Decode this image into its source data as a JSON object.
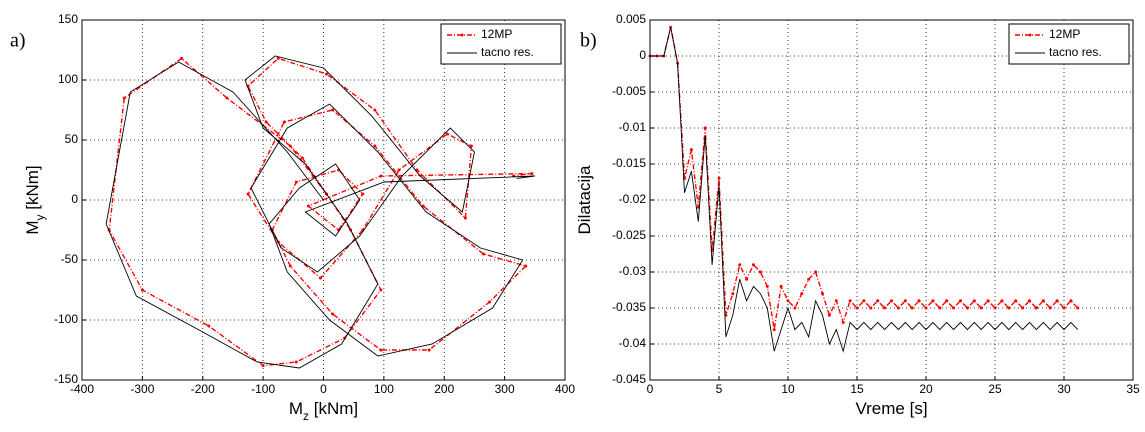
{
  "chart_data": [
    {
      "type": "line",
      "label": "a)",
      "xlabel": [
        "M",
        "z",
        " [kNm]"
      ],
      "ylabel": [
        "M",
        "y",
        " [kNm]"
      ],
      "xlim": [
        -400,
        400
      ],
      "xticks": [
        -400,
        -300,
        -200,
        -100,
        0,
        100,
        200,
        300,
        400
      ],
      "ylim": [
        -150,
        150
      ],
      "yticks": [
        -150,
        -100,
        -50,
        0,
        50,
        100,
        150
      ],
      "grid": true,
      "legend": "upper right",
      "series": [
        {
          "name": "12MP",
          "color": "#ff0000",
          "style": "dashed",
          "markers": true,
          "x": [
            5,
            -55,
            -160,
            -235,
            -330,
            -355,
            -300,
            -190,
            -100,
            -45,
            35,
            95,
            45,
            -35,
            -95,
            -125,
            -75,
            5,
            85,
            155,
            235,
            245,
            205,
            125,
            65,
            -5,
            -75,
            -125,
            -65,
            15,
            85,
            165,
            265,
            335,
            275,
            175,
            95,
            15,
            -55,
            -85,
            -45,
            25,
            65,
            25,
            -25,
            95,
            345,
            315
          ],
          "values": [
            5,
            45,
            85,
            118,
            85,
            -25,
            -75,
            -105,
            -138,
            -135,
            -115,
            -75,
            -25,
            35,
            65,
            95,
            118,
            105,
            75,
            25,
            -15,
            45,
            55,
            25,
            -25,
            -65,
            -35,
            5,
            65,
            75,
            45,
            -5,
            -45,
            -55,
            -85,
            -125,
            -125,
            -95,
            -55,
            -25,
            15,
            25,
            5,
            -25,
            -5,
            20,
            22,
            20
          ]
        },
        {
          "name": "tacno res.",
          "color": "#000000",
          "style": "solid",
          "markers": false,
          "x": [
            0,
            -60,
            -150,
            -240,
            -320,
            -360,
            -310,
            -200,
            -110,
            -40,
            30,
            90,
            40,
            -30,
            -100,
            -130,
            -80,
            0,
            80,
            160,
            230,
            250,
            210,
            130,
            60,
            -10,
            -70,
            -120,
            -60,
            10,
            90,
            170,
            260,
            330,
            280,
            180,
            90,
            10,
            -60,
            -90,
            -40,
            20,
            60,
            20,
            -30,
            100,
            350,
            320
          ],
          "values": [
            0,
            40,
            90,
            115,
            90,
            -20,
            -80,
            -110,
            -135,
            -140,
            -120,
            -70,
            -20,
            30,
            60,
            100,
            120,
            110,
            70,
            20,
            -10,
            40,
            60,
            20,
            -30,
            -60,
            -40,
            10,
            60,
            80,
            40,
            -10,
            -40,
            -50,
            -90,
            -120,
            -130,
            -100,
            -60,
            -20,
            10,
            30,
            0,
            -30,
            -10,
            15,
            20,
            18
          ]
        }
      ]
    },
    {
      "type": "line",
      "label": "b)",
      "xlabel": [
        "Vreme [s]"
      ],
      "ylabel": [
        "Dilatacija"
      ],
      "xlim": [
        0,
        35
      ],
      "xticks": [
        0,
        5,
        10,
        15,
        20,
        25,
        30,
        35
      ],
      "ylim": [
        -0.045,
        0.005
      ],
      "yticks": [
        -0.045,
        -0.04,
        -0.035,
        -0.03,
        -0.025,
        -0.02,
        -0.015,
        -0.01,
        -0.005,
        0,
        0.005
      ],
      "grid": true,
      "legend": "upper right",
      "series": [
        {
          "name": "12MP",
          "color": "#ff0000",
          "style": "dashed",
          "markers": true,
          "x": [
            0,
            0.5,
            1,
            1.5,
            2,
            2.5,
            3,
            3.5,
            4,
            4.5,
            5,
            5.5,
            6,
            6.5,
            7,
            7.5,
            8,
            8.5,
            9,
            9.5,
            10,
            10.5,
            11,
            11.5,
            12,
            12.5,
            13,
            13.5,
            14,
            14.5,
            15,
            15.5,
            16,
            16.5,
            17,
            17.5,
            18,
            18.5,
            19,
            19.5,
            20,
            20.5,
            21,
            21.5,
            22,
            22.5,
            23,
            23.5,
            24,
            24.5,
            25,
            25.5,
            26,
            26.5,
            27,
            27.5,
            28,
            28.5,
            29,
            29.5,
            30,
            30.5,
            31
          ],
          "values": [
            0,
            0,
            0,
            0.004,
            -0.001,
            -0.017,
            -0.013,
            -0.021,
            -0.01,
            -0.027,
            -0.017,
            -0.036,
            -0.033,
            -0.029,
            -0.031,
            -0.029,
            -0.03,
            -0.032,
            -0.038,
            -0.032,
            -0.034,
            -0.035,
            -0.033,
            -0.031,
            -0.03,
            -0.033,
            -0.036,
            -0.034,
            -0.037,
            -0.034,
            -0.035,
            -0.034,
            -0.035,
            -0.034,
            -0.035,
            -0.034,
            -0.035,
            -0.034,
            -0.035,
            -0.034,
            -0.035,
            -0.034,
            -0.035,
            -0.034,
            -0.035,
            -0.034,
            -0.035,
            -0.034,
            -0.035,
            -0.034,
            -0.035,
            -0.034,
            -0.035,
            -0.034,
            -0.035,
            -0.034,
            -0.035,
            -0.034,
            -0.035,
            -0.034,
            -0.035,
            -0.034,
            -0.035
          ]
        },
        {
          "name": "tacno res.",
          "color": "#000000",
          "style": "solid",
          "markers": false,
          "x": [
            0,
            0.5,
            1,
            1.5,
            2,
            2.5,
            3,
            3.5,
            4,
            4.5,
            5,
            5.5,
            6,
            6.5,
            7,
            7.5,
            8,
            8.5,
            9,
            9.5,
            10,
            10.5,
            11,
            11.5,
            12,
            12.5,
            13,
            13.5,
            14,
            14.5,
            15,
            15.5,
            16,
            16.5,
            17,
            17.5,
            18,
            18.5,
            19,
            19.5,
            20,
            20.5,
            21,
            21.5,
            22,
            22.5,
            23,
            23.5,
            24,
            24.5,
            25,
            25.5,
            26,
            26.5,
            27,
            27.5,
            28,
            28.5,
            29,
            29.5,
            30,
            30.5,
            31
          ],
          "values": [
            0,
            0,
            0,
            0.004,
            -0.001,
            -0.019,
            -0.016,
            -0.023,
            -0.011,
            -0.029,
            -0.018,
            -0.039,
            -0.036,
            -0.031,
            -0.034,
            -0.032,
            -0.033,
            -0.035,
            -0.041,
            -0.038,
            -0.035,
            -0.038,
            -0.037,
            -0.039,
            -0.034,
            -0.036,
            -0.04,
            -0.038,
            -0.041,
            -0.037,
            -0.038,
            -0.037,
            -0.038,
            -0.037,
            -0.038,
            -0.037,
            -0.038,
            -0.037,
            -0.038,
            -0.037,
            -0.038,
            -0.037,
            -0.038,
            -0.037,
            -0.038,
            -0.037,
            -0.038,
            -0.037,
            -0.038,
            -0.037,
            -0.038,
            -0.037,
            -0.038,
            -0.037,
            -0.038,
            -0.037,
            -0.038,
            -0.037,
            -0.038,
            -0.037,
            -0.038,
            -0.037,
            -0.038
          ]
        }
      ]
    }
  ]
}
